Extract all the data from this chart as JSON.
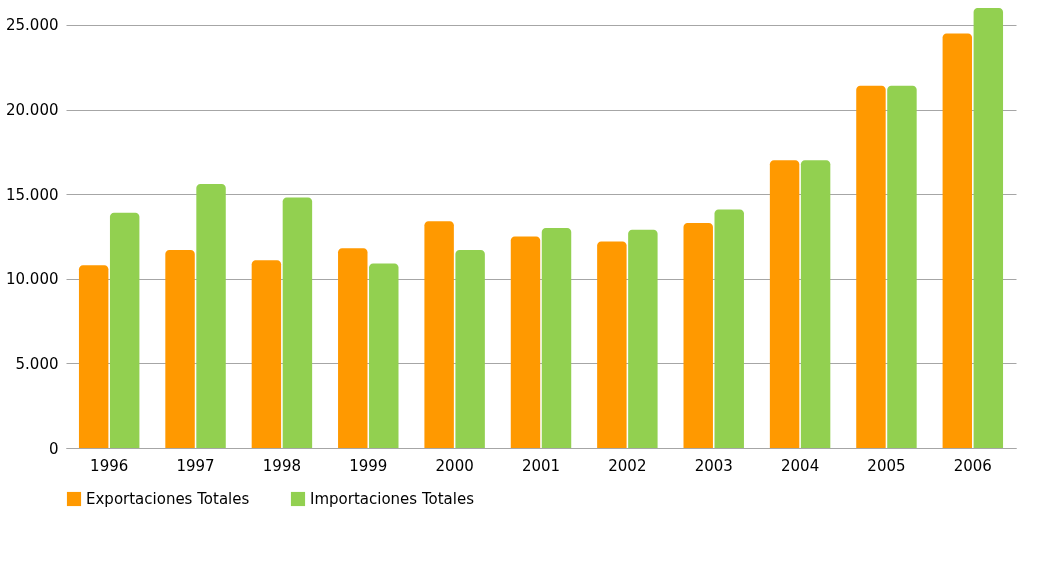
{
  "chart_data": {
    "type": "bar",
    "categories": [
      "1996",
      "1997",
      "1998",
      "1999",
      "2000",
      "2001",
      "2002",
      "2003",
      "2004",
      "2005",
      "2006"
    ],
    "series": [
      {
        "name": "Exportaciones Totales",
        "color": "#ff9900",
        "values": [
          10800,
          11700,
          11100,
          11800,
          13400,
          12500,
          12200,
          13300,
          17000,
          21400,
          24500
        ]
      },
      {
        "name": "Importaciones Totales",
        "color": "#92d050",
        "values": [
          13900,
          15600,
          14800,
          10900,
          11700,
          13000,
          12900,
          14100,
          17000,
          21400,
          26000
        ]
      }
    ],
    "ylim": [
      0,
      26000
    ],
    "yticks": [
      {
        "value": 0,
        "label": "0"
      },
      {
        "value": 5000,
        "label": "5.000"
      },
      {
        "value": 10000,
        "label": "10.000"
      },
      {
        "value": 15000,
        "label": "15.000"
      },
      {
        "value": 20000,
        "label": "20.000"
      },
      {
        "value": 25000,
        "label": "25.000"
      }
    ],
    "grid": "y",
    "legend": "bottom"
  }
}
